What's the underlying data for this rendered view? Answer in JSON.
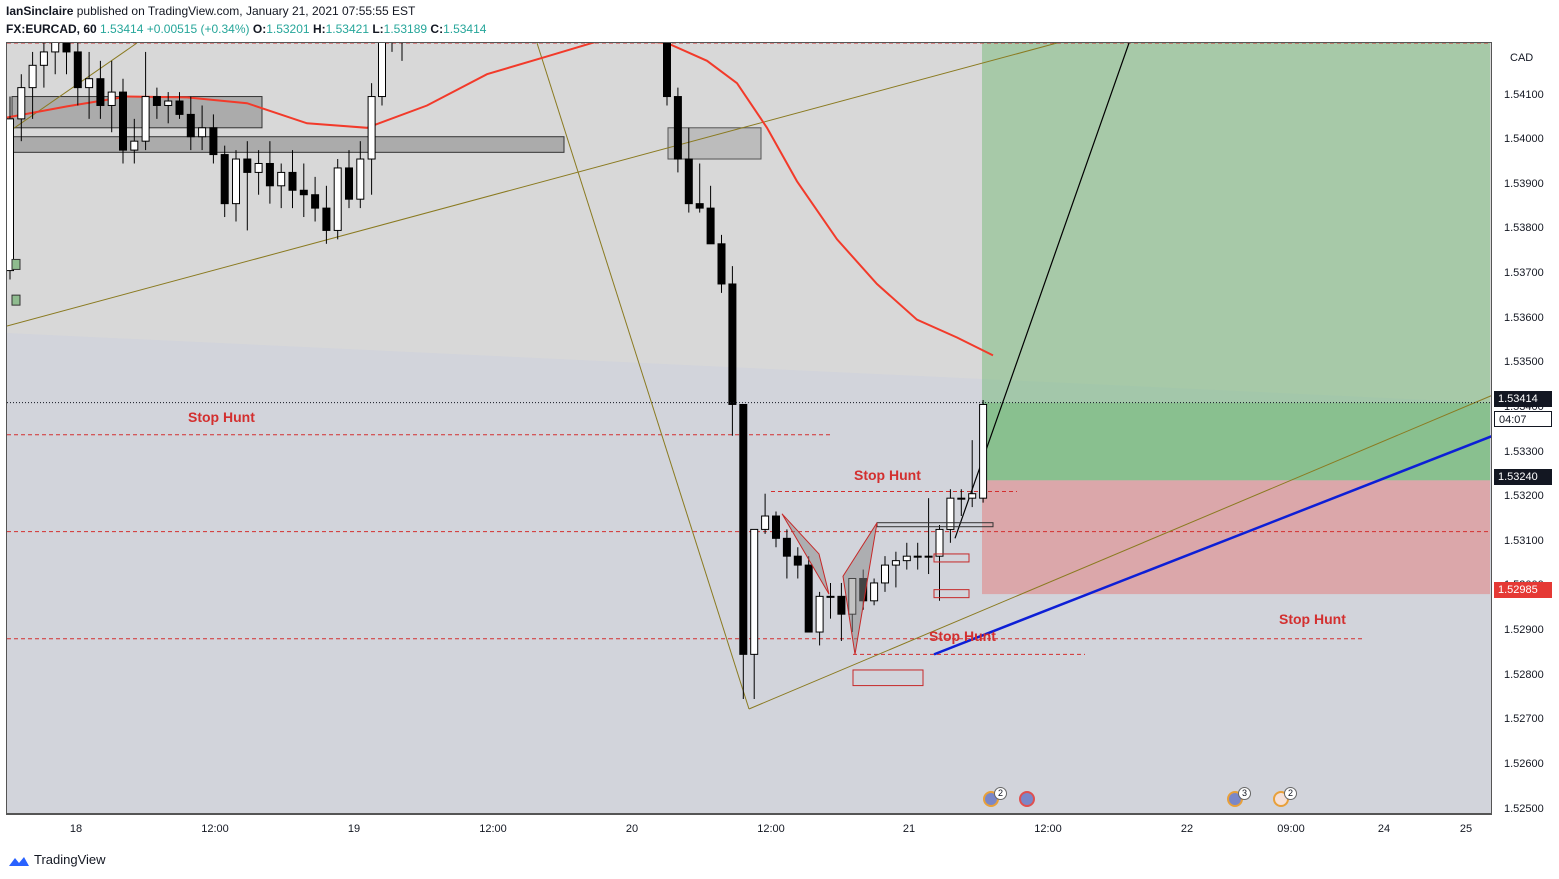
{
  "header": {
    "publisher": "IanSinclaire",
    "published_text": "published on TradingView.com, January 21, 2021 07:55:55 EST",
    "symbol": "FX:EURCAD, 60",
    "last": "1.53414",
    "change": "+0.00515 (+0.34%)",
    "o_label": "O:",
    "o_value": "1.53201",
    "h_label": "H:",
    "h_value": "1.53421",
    "l_label": "L:",
    "l_value": "1.53189",
    "c_label": "C:",
    "c_value": "1.53414"
  },
  "brand": {
    "name": "TradingView"
  },
  "chart_data": {
    "type": "candlestick",
    "symbol": "FX:EURCAD",
    "interval": "60",
    "currency": "CAD",
    "y_range": [
      1.5249,
      1.5422
    ],
    "y_ticks": [
      "1.54100",
      "1.54000",
      "1.53900",
      "1.53800",
      "1.53700",
      "1.53600",
      "1.53500",
      "1.53400",
      "1.53300",
      "1.53200",
      "1.53100",
      "1.53000",
      "1.52900",
      "1.52800",
      "1.52700",
      "1.52600",
      "1.52500"
    ],
    "x_ticks": [
      "18",
      "12:00",
      "19",
      "12:00",
      "20",
      "12:00",
      "21",
      "12:00",
      "22",
      "09:00",
      "24",
      "25"
    ],
    "price_labels": {
      "current": "1.53414",
      "countdown": "04:07",
      "target": "1.53240",
      "stop": "1.52985"
    },
    "annotations": [
      "Stop Hunt",
      "Stop Hunt",
      "Stop Hunt",
      "Stop Hunt"
    ],
    "events": [
      {
        "count": "2"
      },
      {
        "count": ""
      },
      {
        "count": "3"
      },
      {
        "count": "2"
      }
    ],
    "colors": {
      "bullish_candle": "#ffffff",
      "bearish_candle": "#000000",
      "moving_average": "#f23a2a",
      "stop_hunt": "#d32f2f",
      "trendline_blue": "#0d1fd6",
      "trendline_olive": "#8a7a20",
      "profit_zone": "#4caf50",
      "loss_zone": "#ef5350"
    },
    "candles": [
      {
        "o": 1.5371,
        "h": 1.541,
        "l": 1.5369,
        "c": 1.5405
      },
      {
        "o": 1.5405,
        "h": 1.5415,
        "l": 1.54,
        "c": 1.5412
      },
      {
        "o": 1.5412,
        "h": 1.542,
        "l": 1.5405,
        "c": 1.5417
      },
      {
        "o": 1.5417,
        "h": 1.5422,
        "l": 1.5412,
        "c": 1.542
      },
      {
        "o": 1.542,
        "h": 1.543,
        "l": 1.5415,
        "c": 1.5425
      },
      {
        "o": 1.5425,
        "h": 1.5428,
        "l": 1.5415,
        "c": 1.542
      },
      {
        "o": 1.542,
        "h": 1.5425,
        "l": 1.5408,
        "c": 1.5412
      },
      {
        "o": 1.5412,
        "h": 1.542,
        "l": 1.5405,
        "c": 1.5414
      },
      {
        "o": 1.5414,
        "h": 1.5418,
        "l": 1.5405,
        "c": 1.5408
      },
      {
        "o": 1.5408,
        "h": 1.5418,
        "l": 1.5402,
        "c": 1.5411
      },
      {
        "o": 1.5411,
        "h": 1.5414,
        "l": 1.5395,
        "c": 1.5398
      },
      {
        "o": 1.5398,
        "h": 1.5405,
        "l": 1.5395,
        "c": 1.54
      },
      {
        "o": 1.54,
        "h": 1.542,
        "l": 1.5398,
        "c": 1.541
      },
      {
        "o": 1.541,
        "h": 1.5412,
        "l": 1.5405,
        "c": 1.5408
      },
      {
        "o": 1.5408,
        "h": 1.5411,
        "l": 1.5404,
        "c": 1.5409
      },
      {
        "o": 1.5409,
        "h": 1.5411,
        "l": 1.5405,
        "c": 1.5406
      },
      {
        "o": 1.5406,
        "h": 1.541,
        "l": 1.5398,
        "c": 1.5401
      },
      {
        "o": 1.5401,
        "h": 1.5408,
        "l": 1.5398,
        "c": 1.5403
      },
      {
        "o": 1.5403,
        "h": 1.5406,
        "l": 1.5395,
        "c": 1.5397
      },
      {
        "o": 1.5397,
        "h": 1.5399,
        "l": 1.5383,
        "c": 1.5386
      },
      {
        "o": 1.5386,
        "h": 1.5398,
        "l": 1.5382,
        "c": 1.5396
      },
      {
        "o": 1.5396,
        "h": 1.54,
        "l": 1.538,
        "c": 1.5393
      },
      {
        "o": 1.5393,
        "h": 1.5398,
        "l": 1.5388,
        "c": 1.5395
      },
      {
        "o": 1.5395,
        "h": 1.54,
        "l": 1.5386,
        "c": 1.539
      },
      {
        "o": 1.539,
        "h": 1.5395,
        "l": 1.5385,
        "c": 1.5393
      },
      {
        "o": 1.5393,
        "h": 1.5398,
        "l": 1.5385,
        "c": 1.5389
      },
      {
        "o": 1.5389,
        "h": 1.5395,
        "l": 1.5383,
        "c": 1.5388
      },
      {
        "o": 1.5388,
        "h": 1.5392,
        "l": 1.5382,
        "c": 1.5385
      },
      {
        "o": 1.5385,
        "h": 1.539,
        "l": 1.5377,
        "c": 1.538
      },
      {
        "o": 1.538,
        "h": 1.5396,
        "l": 1.5378,
        "c": 1.5394
      },
      {
        "o": 1.5394,
        "h": 1.5398,
        "l": 1.5385,
        "c": 1.5387
      },
      {
        "o": 1.5387,
        "h": 1.54,
        "l": 1.5385,
        "c": 1.5396
      },
      {
        "o": 1.5396,
        "h": 1.5413,
        "l": 1.5388,
        "c": 1.541
      },
      {
        "o": 1.541,
        "h": 1.5435,
        "l": 1.5408,
        "c": 1.543
      },
      {
        "o": 1.5428,
        "h": 1.5435,
        "l": 1.542,
        "c": 1.5425
      },
      {
        "o": 1.5425,
        "h": 1.544,
        "l": 1.5418,
        "c": 1.5432
      },
      {
        "o": 1.5432,
        "h": 1.5435,
        "l": 1.5408,
        "c": 1.541
      },
      {
        "o": 1.541,
        "h": 1.5412,
        "l": 1.5393,
        "c": 1.5396
      },
      {
        "o": 1.5396,
        "h": 1.5403,
        "l": 1.5384,
        "c": 1.5386
      },
      {
        "o": 1.5386,
        "h": 1.5395,
        "l": 1.5384,
        "c": 1.5385
      },
      {
        "o": 1.5385,
        "h": 1.539,
        "l": 1.5377,
        "c": 1.5377
      },
      {
        "o": 1.5377,
        "h": 1.5379,
        "l": 1.5366,
        "c": 1.5368
      },
      {
        "o": 1.5368,
        "h": 1.5372,
        "l": 1.5334,
        "c": 1.5341
      },
      {
        "o": 1.5341,
        "h": 1.5341,
        "l": 1.5275,
        "c": 1.5285
      },
      {
        "o": 1.5285,
        "h": 1.5312,
        "l": 1.5275,
        "c": 1.5313
      },
      {
        "o": 1.5313,
        "h": 1.5321,
        "l": 1.5312,
        "c": 1.5316
      },
      {
        "o": 1.5316,
        "h": 1.5317,
        "l": 1.5309,
        "c": 1.5311
      },
      {
        "o": 1.5311,
        "h": 1.5313,
        "l": 1.5302,
        "c": 1.5307
      },
      {
        "o": 1.5307,
        "h": 1.5309,
        "l": 1.5302,
        "c": 1.5305
      },
      {
        "o": 1.5305,
        "h": 1.5307,
        "l": 1.529,
        "c": 1.529
      },
      {
        "o": 1.529,
        "h": 1.5299,
        "l": 1.5287,
        "c": 1.5298
      },
      {
        "o": 1.5298,
        "h": 1.5301,
        "l": 1.5293,
        "c": 1.5298
      },
      {
        "o": 1.5298,
        "h": 1.5301,
        "l": 1.5288,
        "c": 1.5294
      },
      {
        "o": 1.5294,
        "h": 1.5302,
        "l": 1.529,
        "c": 1.5302
      },
      {
        "o": 1.5302,
        "h": 1.5304,
        "l": 1.5295,
        "c": 1.5297
      },
      {
        "o": 1.5297,
        "h": 1.5302,
        "l": 1.5296,
        "c": 1.5301
      },
      {
        "o": 1.5301,
        "h": 1.5307,
        "l": 1.5299,
        "c": 1.5305
      },
      {
        "o": 1.5305,
        "h": 1.5308,
        "l": 1.53,
        "c": 1.5306
      },
      {
        "o": 1.5306,
        "h": 1.531,
        "l": 1.5304,
        "c": 1.5307
      },
      {
        "o": 1.5307,
        "h": 1.531,
        "l": 1.5304,
        "c": 1.5307
      },
      {
        "o": 1.5307,
        "h": 1.532,
        "l": 1.5303,
        "c": 1.5307
      },
      {
        "o": 1.5307,
        "h": 1.5314,
        "l": 1.5297,
        "c": 1.5313
      },
      {
        "o": 1.5313,
        "h": 1.5322,
        "l": 1.531,
        "c": 1.532
      },
      {
        "o": 1.532,
        "h": 1.5322,
        "l": 1.5316,
        "c": 1.532
      },
      {
        "o": 1.532,
        "h": 1.5333,
        "l": 1.5318,
        "c": 1.5321
      },
      {
        "o": 1.532,
        "h": 1.5342,
        "l": 1.5319,
        "c": 1.5341
      }
    ]
  }
}
